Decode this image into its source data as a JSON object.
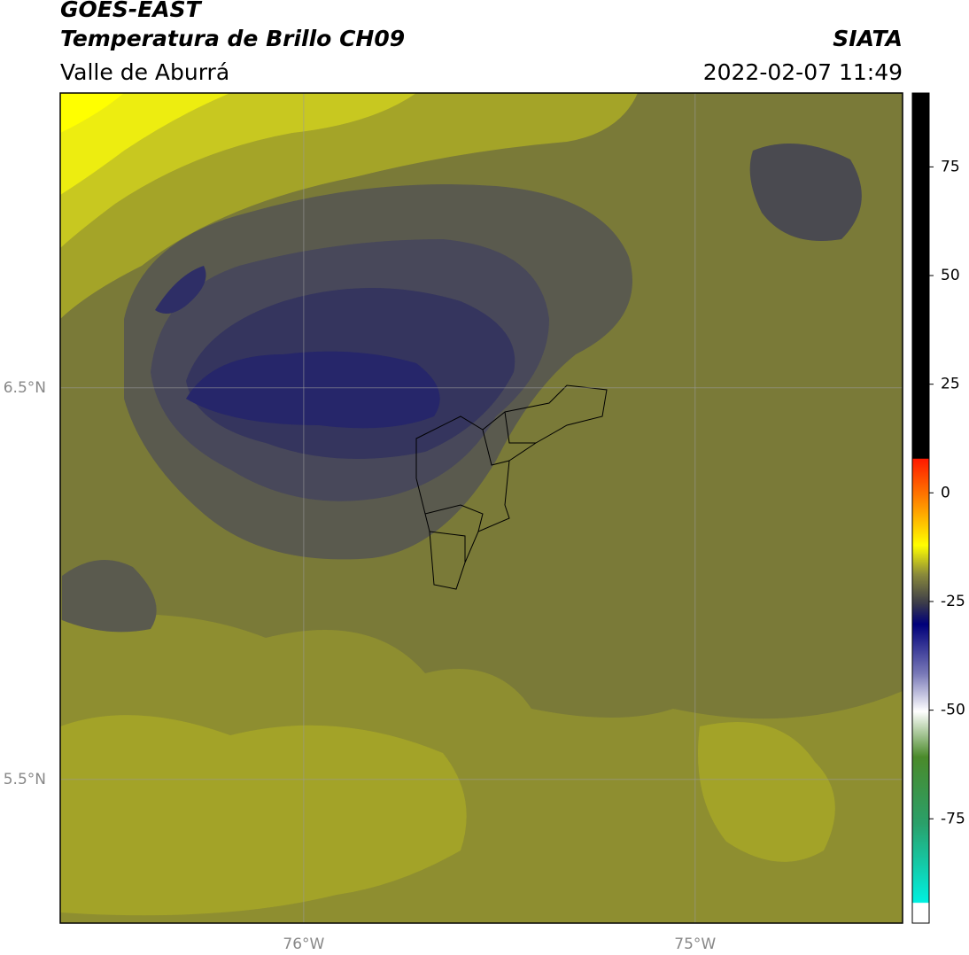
{
  "chart_data": {
    "type": "map",
    "title": "GOES-EAST",
    "subtitle": "Temperatura de Brillo CH09",
    "region": "Valle de Aburrá",
    "source": "SIATA",
    "datetime": "2022-02-07 11:49",
    "xlim": [
      -76.622,
      -74.47
    ],
    "ylim": [
      5.133,
      7.253
    ],
    "xticks": [
      {
        "value": -76,
        "label": "76°W"
      },
      {
        "value": -75,
        "label": "75°W"
      }
    ],
    "yticks": [
      {
        "value": 6.5,
        "label": "6.5°N"
      },
      {
        "value": 5.5,
        "label": "5.5°N"
      }
    ],
    "grid": true,
    "colorbar": {
      "clim": [
        -99,
        92
      ],
      "ticks": [
        75,
        50,
        25,
        0,
        -25,
        -50,
        -75
      ]
    }
  }
}
